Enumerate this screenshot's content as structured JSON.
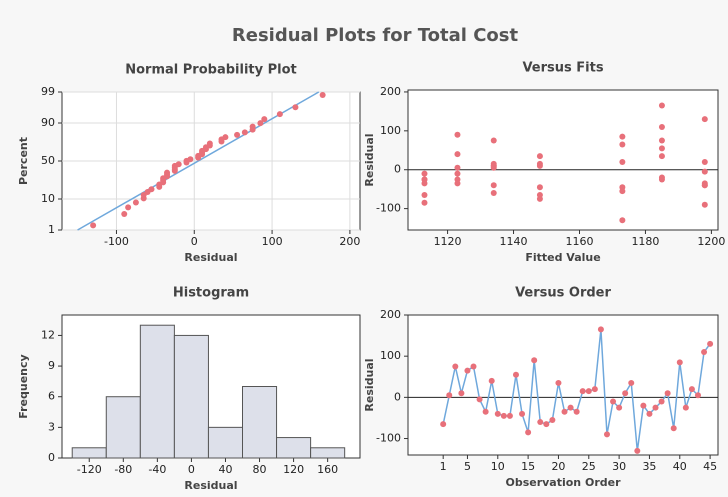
{
  "title": "Residual Plots for Total Cost",
  "chart_data": [
    {
      "type": "probability",
      "title": "Normal Probability Plot",
      "x_label": "Residual",
      "y_label": "Percent",
      "series": [
        {
          "color": "#e8707a",
          "x": [
            -130,
            -90,
            -85,
            -75,
            -65,
            -65,
            -60,
            -55,
            -45,
            -45,
            -40,
            -40,
            -40,
            -35,
            -35,
            -35,
            -25,
            -25,
            -25,
            -25,
            -20,
            -10,
            -10,
            -5,
            5,
            5,
            10,
            10,
            10,
            15,
            15,
            20,
            20,
            35,
            35,
            40,
            55,
            65,
            75,
            75,
            85,
            90,
            110,
            130,
            165
          ],
          "values": [
            1.5,
            3.7,
            5.9,
            8.1,
            10.4,
            12.6,
            14.8,
            17.0,
            19.2,
            21.4,
            23.6,
            25.8,
            28.0,
            30.2,
            32.4,
            34.7,
            36.9,
            39.1,
            41.3,
            43.5,
            45.7,
            47.9,
            50.1,
            52.3,
            54.5,
            56.8,
            59.0,
            61.2,
            63.4,
            65.6,
            67.8,
            70.0,
            72.2,
            74.4,
            76.7,
            78.9,
            81.1,
            83.3,
            85.5,
            87.7,
            89.9,
            92.1,
            94.3,
            96.5,
            98.7
          ]
        }
      ],
      "fit_line": {
        "color": "#6fa8dc",
        "x": [
          -150,
          160
        ],
        "values": [
          1,
          99
        ]
      },
      "xlim": [
        -170,
        213
      ],
      "xticks": [
        -100,
        0,
        100,
        200
      ],
      "ylim": [
        1,
        99
      ],
      "yticks": [
        1,
        10,
        50,
        90,
        99
      ],
      "grid": true
    },
    {
      "type": "scatter",
      "title": "Versus Fits",
      "x_label": "Fitted Value",
      "y_label": "Residual",
      "series": [
        {
          "color": "#e8707a",
          "x": [
            1113,
            1123,
            1134,
            1148,
            1173,
            1185,
            1198,
            1113,
            1123,
            1134,
            1148,
            1173,
            1185,
            1198,
            1113,
            1123,
            1134,
            1148,
            1173,
            1185,
            1198,
            1113,
            1123,
            1134,
            1148,
            1173,
            1185,
            1198,
            1113,
            1123,
            1134,
            1148,
            1173,
            1185,
            1198,
            1113,
            1123,
            1134,
            1148,
            1173,
            1185,
            1198,
            1134,
            1185,
            1198
          ],
          "values": [
            -65,
            5,
            75,
            10,
            65,
            75,
            -5,
            -35,
            40,
            -40,
            -45,
            -45,
            55,
            -40,
            -85,
            90,
            -60,
            -65,
            -55,
            35,
            -35,
            -25,
            -35,
            15,
            15,
            20,
            165,
            -90,
            -10,
            -25,
            10,
            35,
            -130,
            -20,
            -40,
            -25,
            -10,
            10,
            -75,
            85,
            -25,
            20,
            5,
            110,
            130
          ]
        }
      ],
      "hline": 0,
      "xlim": [
        1108,
        1202
      ],
      "xticks": [
        1120,
        1140,
        1160,
        1180,
        1200
      ],
      "ylim": [
        -155,
        205
      ],
      "yticks": [
        -100,
        0,
        100,
        200
      ]
    },
    {
      "type": "histogram",
      "title": "Histogram",
      "x_label": "Residual",
      "y_label": "Frequency",
      "color": "#dde0ea",
      "bins": [
        -140,
        -100,
        -60,
        -20,
        20,
        60,
        100,
        140,
        180
      ],
      "values": [
        1,
        6,
        13,
        12,
        3,
        7,
        2,
        1
      ],
      "xlim": [
        -152,
        198
      ],
      "xticks": [
        -120,
        -80,
        -40,
        0,
        40,
        80,
        120,
        160
      ],
      "ylim": [
        0,
        14
      ],
      "yticks": [
        0,
        3,
        6,
        9,
        12
      ]
    },
    {
      "type": "line",
      "title": "Versus Order",
      "x_label": "Observation Order",
      "y_label": "Residual",
      "series": [
        {
          "color": "#6fa8dc",
          "marker_color": "#e8707a",
          "x": [
            1,
            2,
            3,
            4,
            5,
            6,
            7,
            8,
            9,
            10,
            11,
            12,
            13,
            14,
            15,
            16,
            17,
            18,
            19,
            20,
            21,
            22,
            23,
            24,
            25,
            26,
            27,
            28,
            29,
            30,
            31,
            32,
            33,
            34,
            35,
            36,
            37,
            38,
            39,
            40,
            41,
            42,
            43,
            44,
            45
          ],
          "values": [
            -65,
            5,
            75,
            10,
            65,
            75,
            -5,
            -35,
            40,
            -40,
            -45,
            -45,
            55,
            -40,
            -85,
            90,
            -60,
            -65,
            -55,
            35,
            -35,
            -25,
            -35,
            15,
            15,
            20,
            165,
            -90,
            -10,
            -25,
            10,
            35,
            -130,
            -20,
            -40,
            -25,
            -10,
            10,
            -75,
            85,
            -25,
            20,
            5,
            110,
            130
          ]
        }
      ],
      "hline": 0,
      "xlim": [
        -4.8,
        46.3
      ],
      "xticks": [
        1,
        5,
        10,
        15,
        20,
        25,
        30,
        35,
        40,
        45
      ],
      "ylim": [
        -140,
        200
      ],
      "yticks": [
        -100,
        0,
        100,
        200
      ]
    }
  ]
}
